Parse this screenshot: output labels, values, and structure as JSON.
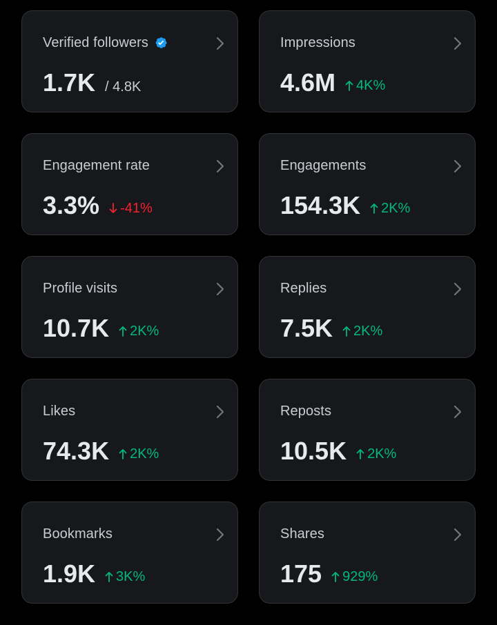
{
  "colors": {
    "background": "#000000",
    "card": "#16181c",
    "card_border": "#2f3336",
    "text_primary": "#e7e9ea",
    "text_secondary": "#c9cdd1",
    "positive": "#00ba7c",
    "negative": "#f4212e",
    "verified_badge": "#1d9bf0"
  },
  "cards": {
    "verified_followers": {
      "label": "Verified followers",
      "value": "1.7K",
      "total": "/ 4.8K",
      "icon": "verified-badge-icon"
    },
    "impressions": {
      "label": "Impressions",
      "value": "4.6M",
      "delta": "4K%",
      "direction": "up"
    },
    "engagement_rate": {
      "label": "Engagement rate",
      "value": "3.3%",
      "delta": "-41%",
      "direction": "down"
    },
    "engagements": {
      "label": "Engagements",
      "value": "154.3K",
      "delta": "2K%",
      "direction": "up"
    },
    "profile_visits": {
      "label": "Profile visits",
      "value": "10.7K",
      "delta": "2K%",
      "direction": "up"
    },
    "replies": {
      "label": "Replies",
      "value": "7.5K",
      "delta": "2K%",
      "direction": "up"
    },
    "likes": {
      "label": "Likes",
      "value": "74.3K",
      "delta": "2K%",
      "direction": "up"
    },
    "reposts": {
      "label": "Reposts",
      "value": "10.5K",
      "delta": "2K%",
      "direction": "up"
    },
    "bookmarks": {
      "label": "Bookmarks",
      "value": "1.9K",
      "delta": "3K%",
      "direction": "up"
    },
    "shares": {
      "label": "Shares",
      "value": "175",
      "delta": "929%",
      "direction": "up"
    }
  }
}
